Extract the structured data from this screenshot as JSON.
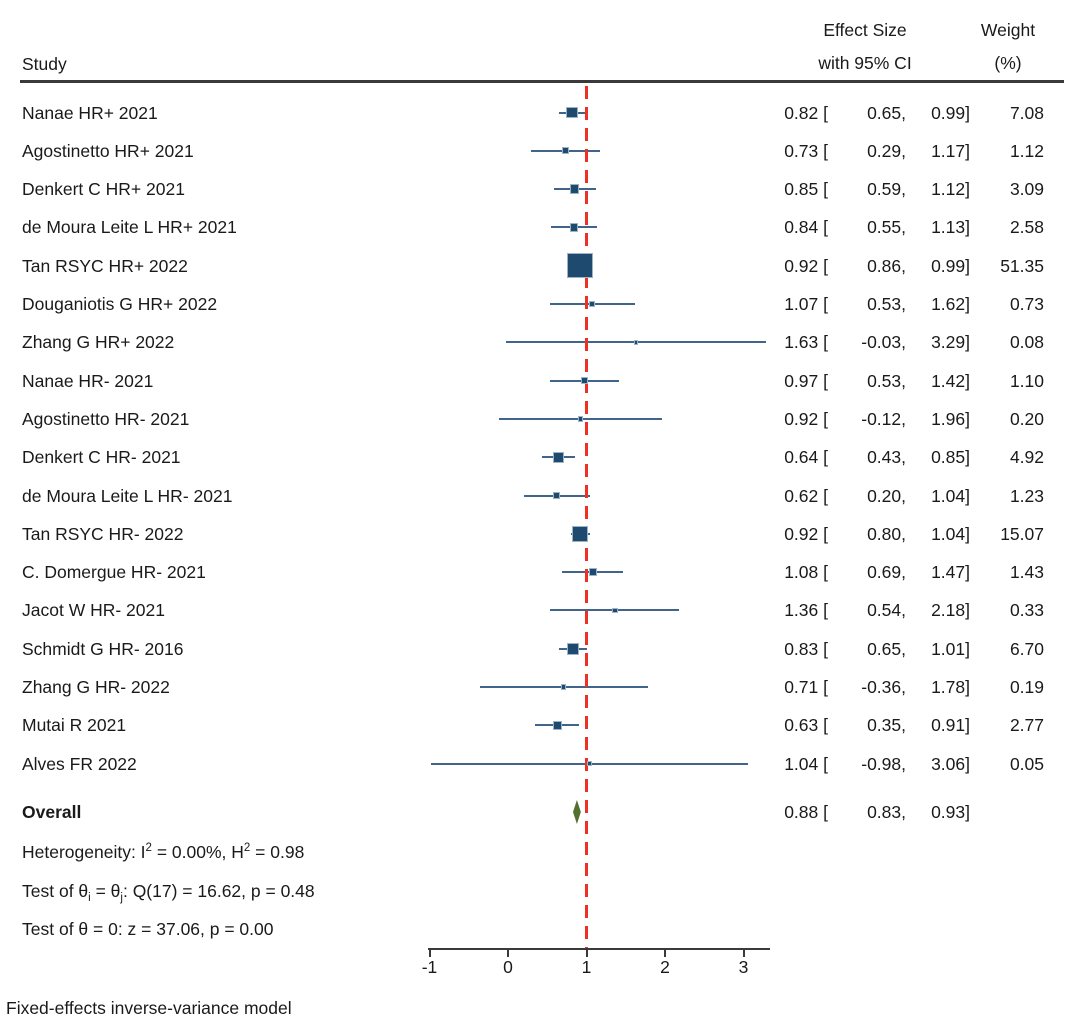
{
  "header": {
    "study": "Study",
    "effect_line1": "Effect Size",
    "effect_line2": "with 95% CI",
    "weight_line1": "Weight",
    "weight_line2": "(%)"
  },
  "note": "Fixed-effects inverse-variance model",
  "chart_data": {
    "type": "forest",
    "x_ticks": [
      -1,
      0,
      1,
      2,
      3
    ],
    "x_range_line": [
      -1.02,
      3.34
    ],
    "reference_line": 1,
    "columns": [
      "Study",
      "Effect Size with 95% CI",
      "Weight (%)"
    ],
    "studies": [
      {
        "label": "Nanae HR+ 2021",
        "est": "0.82",
        "lo": "0.65",
        "hi": "0.99",
        "weight": "7.08"
      },
      {
        "label": "Agostinetto HR+ 2021",
        "est": "0.73",
        "lo": "0.29",
        "hi": "1.17",
        "weight": "1.12"
      },
      {
        "label": "Denkert C HR+ 2021",
        "est": "0.85",
        "lo": "0.59",
        "hi": "1.12",
        "weight": "3.09"
      },
      {
        "label": "de Moura Leite L HR+ 2021",
        "est": "0.84",
        "lo": "0.55",
        "hi": "1.13",
        "weight": "2.58"
      },
      {
        "label": "Tan RSYC HR+ 2022",
        "est": "0.92",
        "lo": "0.86",
        "hi": "0.99",
        "weight": "51.35"
      },
      {
        "label": "Douganiotis G HR+ 2022",
        "est": "1.07",
        "lo": "0.53",
        "hi": "1.62",
        "weight": "0.73"
      },
      {
        "label": "Zhang G HR+ 2022",
        "est": "1.63",
        "lo": "-0.03",
        "hi": "3.29",
        "weight": "0.08"
      },
      {
        "label": "Nanae HR- 2021",
        "est": "0.97",
        "lo": "0.53",
        "hi": "1.42",
        "weight": "1.10"
      },
      {
        "label": "Agostinetto HR- 2021",
        "est": "0.92",
        "lo": "-0.12",
        "hi": "1.96",
        "weight": "0.20"
      },
      {
        "label": "Denkert C HR- 2021",
        "est": "0.64",
        "lo": "0.43",
        "hi": "0.85",
        "weight": "4.92"
      },
      {
        "label": "de Moura Leite L HR- 2021",
        "est": "0.62",
        "lo": "0.20",
        "hi": "1.04",
        "weight": "1.23"
      },
      {
        "label": "Tan RSYC HR- 2022",
        "est": "0.92",
        "lo": "0.80",
        "hi": "1.04",
        "weight": "15.07"
      },
      {
        "label": "C. Domergue HR- 2021",
        "est": "1.08",
        "lo": "0.69",
        "hi": "1.47",
        "weight": "1.43"
      },
      {
        "label": "Jacot W HR- 2021",
        "est": "1.36",
        "lo": "0.54",
        "hi": "2.18",
        "weight": "0.33"
      },
      {
        "label": "Schmidt G HR- 2016",
        "est": "0.83",
        "lo": "0.65",
        "hi": "1.01",
        "weight": "6.70"
      },
      {
        "label": "Zhang G HR- 2022",
        "est": "0.71",
        "lo": "-0.36",
        "hi": "1.78",
        "weight": "0.19"
      },
      {
        "label": "Mutai R 2021",
        "est": "0.63",
        "lo": "0.35",
        "hi": "0.91",
        "weight": "2.77"
      },
      {
        "label": "Alves FR 2022",
        "est": "1.04",
        "lo": "-0.98",
        "hi": "3.06",
        "weight": "0.05"
      }
    ],
    "overall": {
      "label": "Overall",
      "est": "0.88",
      "lo": "0.83",
      "hi": "0.93"
    },
    "stats": {
      "heterogeneity": [
        {
          "t": "Heterogeneity: I"
        },
        {
          "t": "2",
          "style": "sup"
        },
        {
          "t": " = 0.00%, H"
        },
        {
          "t": "2",
          "style": "sup"
        },
        {
          "t": " = 0.98"
        }
      ],
      "test_q": [
        {
          "t": "Test of θ"
        },
        {
          "t": "i",
          "style": "sub"
        },
        {
          "t": " = θ"
        },
        {
          "t": "j",
          "style": "sub"
        },
        {
          "t": ": Q(17) = 16.62, p = 0.48"
        }
      ],
      "test_z": [
        {
          "t": "Test of θ = 0: z = 37.06, p = 0.00"
        }
      ]
    },
    "colors": {
      "marker_fill": "#1f4a6f",
      "marker_edge": "#9db3c6",
      "ci_line": "#41658a",
      "reference_line": "#ee3124",
      "diamond": "#53702e",
      "axis": "#3a3a3a",
      "text": "#1a1a1a"
    }
  }
}
